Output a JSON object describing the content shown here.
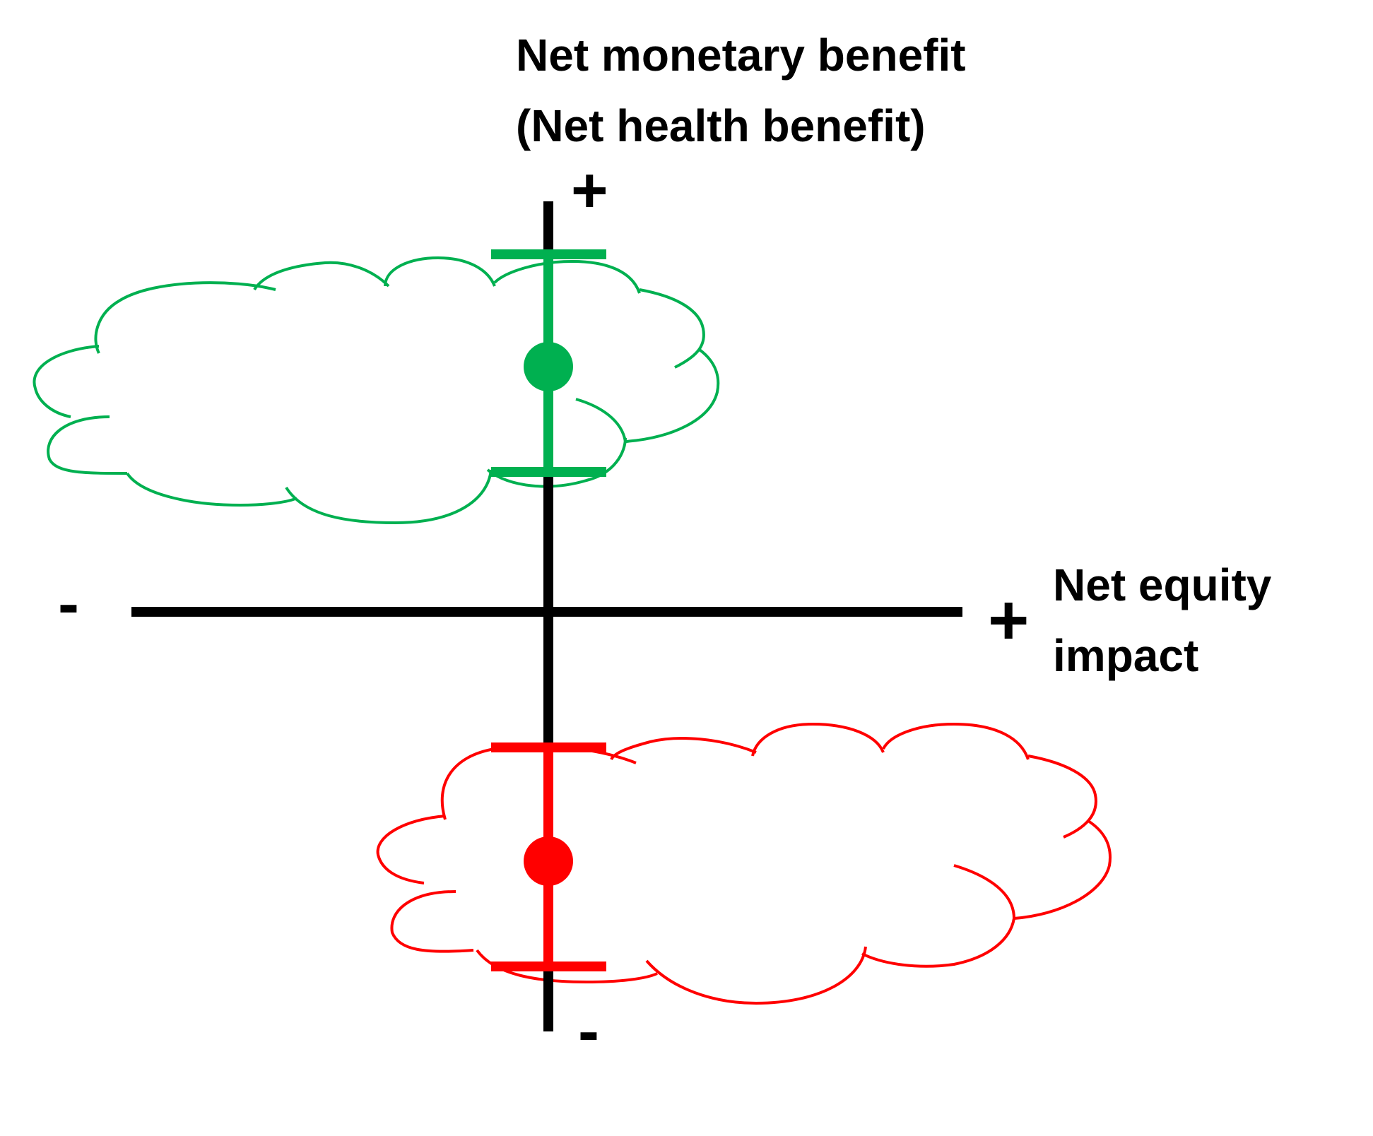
{
  "labels": {
    "y_axis_line1": "Net monetary benefit",
    "y_axis_line2": "(Net health benefit)",
    "x_axis_line1": "Net equity",
    "x_axis_line2": "impact",
    "y_plus": "+",
    "y_minus": "-",
    "x_plus": "+",
    "x_minus": "-"
  },
  "colors": {
    "axis": "#000000",
    "positive": "#00b050",
    "negative": "#ff0000"
  },
  "elements": [
    {
      "id": "upper-estimate",
      "color_key": "positive",
      "shape": "cloud-with-error-bar",
      "quadrant": "upper-left"
    },
    {
      "id": "lower-estimate",
      "color_key": "negative",
      "shape": "cloud-with-error-bar",
      "quadrant": "lower-right"
    }
  ]
}
